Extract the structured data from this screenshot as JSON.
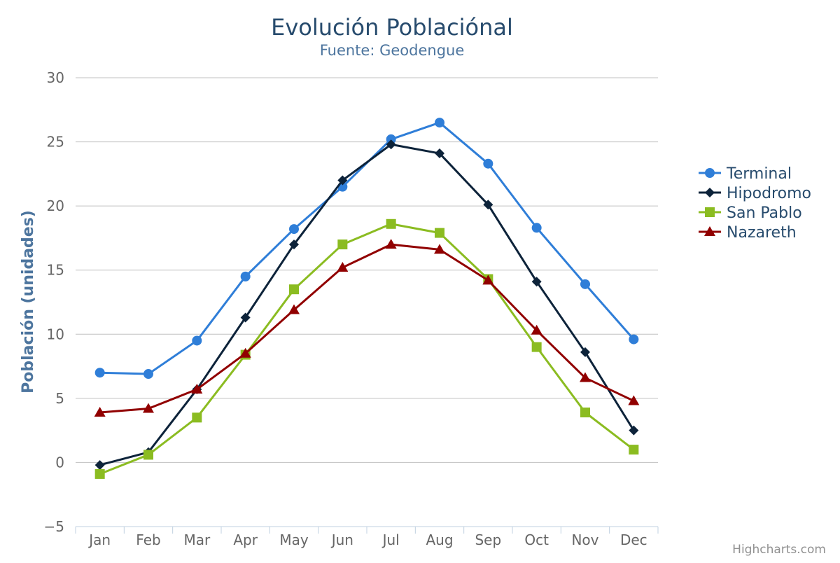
{
  "chart_data": {
    "type": "line",
    "title": "Evolución Poblaciónal",
    "subtitle": "Fuente: Geodengue",
    "xlabel": "",
    "ylabel": "Población (unidades)",
    "categories": [
      "Jan",
      "Feb",
      "Mar",
      "Apr",
      "May",
      "Jun",
      "Jul",
      "Aug",
      "Sep",
      "Oct",
      "Nov",
      "Dec"
    ],
    "ylim": [
      -5,
      30
    ],
    "yticks": [
      -5,
      0,
      5,
      10,
      15,
      20,
      25,
      30
    ],
    "ytick_labels": [
      "−5",
      "0",
      "5",
      "10",
      "15",
      "20",
      "25",
      "30"
    ],
    "grid": true,
    "legend_position": "right",
    "series": [
      {
        "name": "Terminal",
        "color": "#2f7ed8",
        "marker": "circle",
        "values": [
          7.0,
          6.9,
          9.5,
          14.5,
          18.2,
          21.5,
          25.2,
          26.5,
          23.3,
          18.3,
          13.9,
          9.6
        ]
      },
      {
        "name": "Hipodromo",
        "color": "#0d233a",
        "marker": "diamond",
        "values": [
          -0.2,
          0.8,
          5.7,
          11.3,
          17.0,
          22.0,
          24.8,
          24.1,
          20.1,
          14.1,
          8.6,
          2.5
        ]
      },
      {
        "name": "San Pablo",
        "color": "#8bbc21",
        "marker": "square",
        "values": [
          -0.9,
          0.6,
          3.5,
          8.4,
          13.5,
          17.0,
          18.6,
          17.9,
          14.3,
          9.0,
          3.9,
          1.0
        ]
      },
      {
        "name": "Nazareth",
        "color": "#910000",
        "marker": "triangle",
        "values": [
          3.9,
          4.2,
          5.7,
          8.5,
          11.9,
          15.2,
          17.0,
          16.6,
          14.2,
          10.3,
          6.6,
          4.8
        ]
      }
    ]
  },
  "credits": "Highcharts.com",
  "colors": {
    "title": "#274b6d",
    "subtitle": "#4d759e",
    "grid": "#c0c0c0",
    "axis_line": "#c0d0e0",
    "tick_label": "#666666",
    "credits": "#909090"
  }
}
